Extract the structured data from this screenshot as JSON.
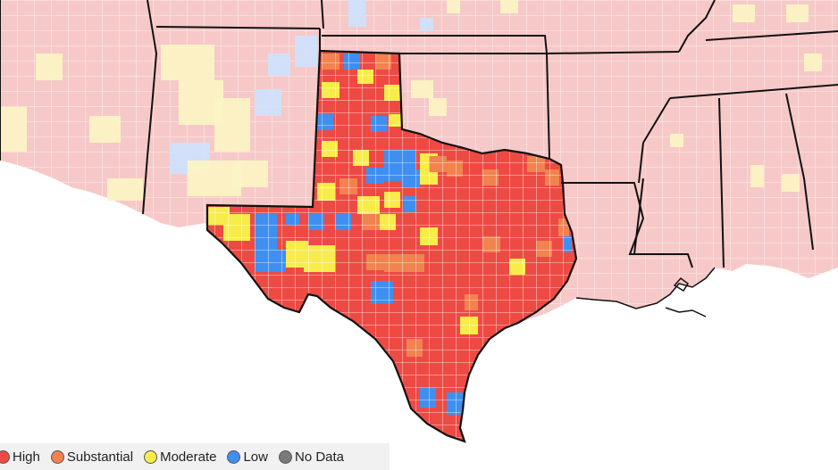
{
  "colors": {
    "high": "#ee4a44",
    "substantial": "#f0834f",
    "moderate": "#f8ec4a",
    "low": "#3f8ff0",
    "no_data": "#7a7a7a",
    "faded_high": "#f6c9c8",
    "faded_moderate": "#fbf3c4",
    "faded_low": "#cfe2fb",
    "water": "#ffffff",
    "state_border": "#111111",
    "county_border": "#ffffff"
  },
  "legend": {
    "items": [
      {
        "key": "high",
        "label": "High",
        "color": "#ee4a44"
      },
      {
        "key": "substantial",
        "label": "Substantial",
        "color": "#f0834f"
      },
      {
        "key": "moderate",
        "label": "Moderate",
        "color": "#f8ec4a"
      },
      {
        "key": "low",
        "label": "Low",
        "color": "#3f8ff0"
      },
      {
        "key": "no_data",
        "label": "No Data",
        "color": "#7a7a7a"
      }
    ]
  },
  "map": {
    "highlighted_state": "Texas",
    "regions": [
      "Arizona",
      "New Mexico",
      "Colorado",
      "Kansas",
      "Oklahoma",
      "Arkansas",
      "Louisiana",
      "Mississippi",
      "Alabama",
      "Missouri",
      "Tennessee",
      "Texas"
    ]
  }
}
